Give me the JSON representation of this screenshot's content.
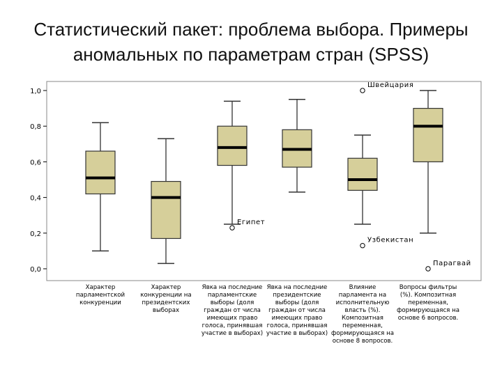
{
  "title": {
    "line1": "Статистический пакет: проблема выбора. Примеры",
    "line2": "аномальных по параметрам стран (SPSS)"
  },
  "colors": {
    "box_fill": "#d6cf9a",
    "box_stroke": "#333333",
    "median": "#000000",
    "frame": "#888888",
    "plot_background": "#ffffff"
  },
  "chart_data": {
    "type": "boxplot",
    "ylim": [
      0.0,
      1.0
    ],
    "yticks": [
      "0,0",
      "0,2",
      "0,4",
      "0,6",
      "0,8",
      "1,0"
    ],
    "grid": false,
    "categories": [
      "Характер парламентской конкуренции",
      "Характер конкуренции на президентских выборах",
      "Явка на последние парламентские выборы (доля граждан от числа имеющих право голоса, принявшая участие в выборах)",
      "Явка на последние президентские выборы (доля граждан от числа имеющих право голоса, принявшая участие в выборах)",
      "Влияние парламента на исполнительную власть (%). Композитная переменная, формирующаяся на основе 8 вопросов.",
      "Вопросы фильтры (%). Композитная переменная, формирующаяся на основе 6 вопросов."
    ],
    "boxes": [
      {
        "whisker_low": 0.1,
        "q1": 0.42,
        "median": 0.51,
        "q3": 0.66,
        "whisker_high": 0.82
      },
      {
        "whisker_low": 0.03,
        "q1": 0.17,
        "median": 0.4,
        "q3": 0.49,
        "whisker_high": 0.73
      },
      {
        "whisker_low": 0.25,
        "q1": 0.58,
        "median": 0.68,
        "q3": 0.8,
        "whisker_high": 0.94
      },
      {
        "whisker_low": 0.43,
        "q1": 0.57,
        "median": 0.67,
        "q3": 0.78,
        "whisker_high": 0.95
      },
      {
        "whisker_low": 0.25,
        "q1": 0.44,
        "median": 0.5,
        "q3": 0.62,
        "whisker_high": 0.75
      },
      {
        "whisker_low": 0.2,
        "q1": 0.6,
        "median": 0.8,
        "q3": 0.9,
        "whisker_high": 1.0
      }
    ],
    "outliers": [
      {
        "category_index": 2,
        "value": 0.23,
        "label": "Египет"
      },
      {
        "category_index": 4,
        "value": 1.0,
        "label": "Швейцария"
      },
      {
        "category_index": 4,
        "value": 0.13,
        "label": "Узбекистан"
      },
      {
        "category_index": 5,
        "value": 0.0,
        "label": "Парагвай"
      }
    ]
  }
}
